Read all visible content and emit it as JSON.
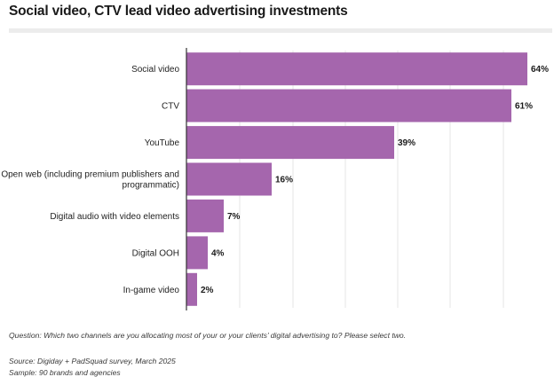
{
  "header": {
    "title": "Social video, CTV lead video advertising investments"
  },
  "colors": {
    "bar": "#a566ad",
    "grid": "#e6e6e6",
    "axis": "#333333"
  },
  "chart_data": {
    "type": "bar",
    "orientation": "horizontal",
    "categories": [
      "Social video",
      "CTV",
      "YouTube",
      "Open web (including premium publishers and programmatic)",
      "Digital audio with video elements",
      "Digital OOH",
      "In-game video"
    ],
    "category_lines": [
      [
        "Social video"
      ],
      [
        "CTV"
      ],
      [
        "YouTube"
      ],
      [
        "Open web (including premium publishers and",
        "programmatic)"
      ],
      [
        "Digital audio with video elements"
      ],
      [
        "Digital OOH"
      ],
      [
        "In-game video"
      ]
    ],
    "values": [
      64,
      61,
      39,
      16,
      7,
      4,
      2
    ],
    "value_labels": [
      "64%",
      "61%",
      "39%",
      "16%",
      "7%",
      "4%",
      "2%"
    ],
    "xlim": [
      0,
      65
    ],
    "grid": true,
    "title": "Social video, CTV lead video advertising investments"
  },
  "footer": {
    "question": "Question: Which two channels are you allocating most of your or your clients’ digital advertising to? Please select two.",
    "source": "Source: Digiday + PadSquad survey, March 2025",
    "sample": "Sample: 90 brands and agencies"
  }
}
